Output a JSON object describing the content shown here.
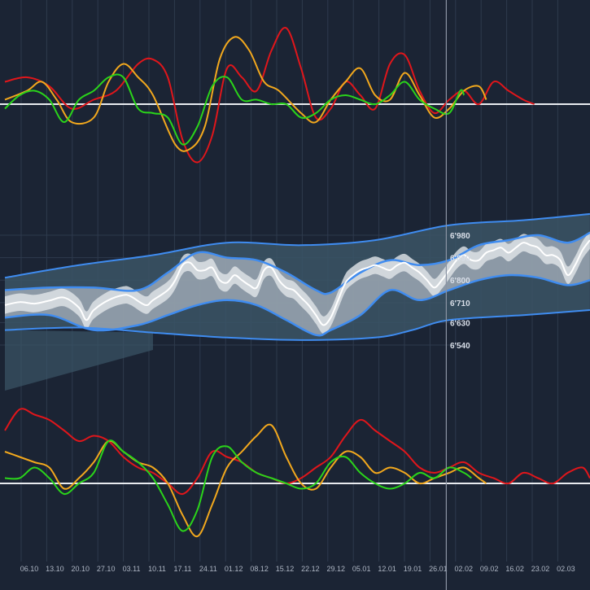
{
  "chart_data": {
    "type": "line",
    "colors": {
      "background": "#1b2434",
      "grid": "#2e3a4d",
      "red": "#e0161b",
      "orange": "#f2a81d",
      "green": "#2ad41a",
      "white": "#ffffff",
      "band_blue": "#3f8cf0",
      "outer_fill": "#3b5566",
      "inner_fill": "#a3acb8",
      "core_fill": "#e2e6ea"
    },
    "x_axis": {
      "tick_labels": [
        "06.10",
        "13.10",
        "20.10",
        "27.10",
        "03.11",
        "10.11",
        "17.11",
        "24.11",
        "01.12",
        "08.12",
        "15.12",
        "22.12",
        "29.12",
        "05.01",
        "12.01",
        "19.01",
        "26.01",
        "02.02",
        "09.02",
        "16.02",
        "23.02",
        "02.03"
      ],
      "current_date": "26.01"
    },
    "y_axis": {
      "tick_labels": [
        "6'980",
        "6'890",
        "6'800",
        "6'710",
        "6'630",
        "6'540"
      ],
      "tick_values": [
        6980,
        6890,
        6800,
        6710,
        6630,
        6540
      ]
    },
    "price_panel": {
      "price": [
        [
          0,
          6700
        ],
        [
          2,
          6712
        ],
        [
          4,
          6706
        ],
        [
          6,
          6718
        ],
        [
          8,
          6730
        ],
        [
          10,
          6690
        ],
        [
          11,
          6640
        ],
        [
          12,
          6680
        ],
        [
          14,
          6720
        ],
        [
          16,
          6740
        ],
        [
          17,
          6735
        ],
        [
          19,
          6700
        ],
        [
          20,
          6720
        ],
        [
          22,
          6760
        ],
        [
          23,
          6800
        ],
        [
          24,
          6860
        ],
        [
          25,
          6870
        ],
        [
          26,
          6840
        ],
        [
          27,
          6840
        ],
        [
          28,
          6850
        ],
        [
          29,
          6800
        ],
        [
          30,
          6790
        ],
        [
          31,
          6820
        ],
        [
          32,
          6800
        ],
        [
          33,
          6780
        ],
        [
          34,
          6770
        ],
        [
          35,
          6840
        ],
        [
          36,
          6850
        ],
        [
          37,
          6800
        ],
        [
          38,
          6770
        ],
        [
          39,
          6760
        ],
        [
          40,
          6730
        ],
        [
          41,
          6700
        ],
        [
          42,
          6660
        ],
        [
          43,
          6620
        ],
        [
          44,
          6650
        ],
        [
          45,
          6720
        ],
        [
          46,
          6790
        ],
        [
          47,
          6820
        ],
        [
          48,
          6840
        ],
        [
          49,
          6850
        ],
        [
          50,
          6860
        ],
        [
          51,
          6850
        ],
        [
          52,
          6840
        ],
        [
          53,
          6860
        ],
        [
          54,
          6870
        ],
        [
          55,
          6850
        ],
        [
          56,
          6830
        ],
        [
          57,
          6800
        ],
        [
          58,
          6770
        ],
        [
          59,
          6800
        ],
        [
          60,
          6840
        ],
        [
          61,
          6880
        ],
        [
          62,
          6900
        ],
        [
          63,
          6880
        ],
        [
          64,
          6880
        ],
        [
          65,
          6910
        ],
        [
          66,
          6920
        ],
        [
          67,
          6930
        ],
        [
          68,
          6910
        ],
        [
          69,
          6930
        ],
        [
          70,
          6950
        ],
        [
          71,
          6940
        ],
        [
          72,
          6930
        ],
        [
          73,
          6900
        ],
        [
          74,
          6900
        ],
        [
          75,
          6880
        ],
        [
          76,
          6820
        ],
        [
          77,
          6860
        ],
        [
          78,
          6920
        ],
        [
          79,
          6960
        ]
      ],
      "inner_upper": [
        [
          0,
          6760
        ],
        [
          6,
          6770
        ],
        [
          12,
          6770
        ],
        [
          18,
          6760
        ],
        [
          22,
          6830
        ],
        [
          26,
          6910
        ],
        [
          30,
          6890
        ],
        [
          34,
          6880
        ],
        [
          38,
          6830
        ],
        [
          42,
          6760
        ],
        [
          44,
          6750
        ],
        [
          48,
          6830
        ],
        [
          52,
          6880
        ],
        [
          56,
          6860
        ],
        [
          60,
          6880
        ],
        [
          64,
          6940
        ],
        [
          68,
          6960
        ],
        [
          72,
          6980
        ],
        [
          76,
          6950
        ],
        [
          79,
          6990
        ]
      ],
      "inner_lower": [
        [
          0,
          6650
        ],
        [
          6,
          6660
        ],
        [
          12,
          6600
        ],
        [
          18,
          6620
        ],
        [
          22,
          6660
        ],
        [
          26,
          6700
        ],
        [
          30,
          6720
        ],
        [
          34,
          6700
        ],
        [
          38,
          6640
        ],
        [
          42,
          6580
        ],
        [
          44,
          6600
        ],
        [
          48,
          6660
        ],
        [
          52,
          6760
        ],
        [
          56,
          6720
        ],
        [
          60,
          6760
        ],
        [
          64,
          6800
        ],
        [
          68,
          6820
        ],
        [
          72,
          6810
        ],
        [
          76,
          6780
        ],
        [
          79,
          6800
        ]
      ],
      "outer_upper": [
        [
          0,
          6810
        ],
        [
          10,
          6860
        ],
        [
          20,
          6900
        ],
        [
          30,
          6950
        ],
        [
          40,
          6940
        ],
        [
          50,
          6960
        ],
        [
          60,
          7020
        ],
        [
          70,
          7040
        ],
        [
          79,
          7065
        ]
      ],
      "outer_lower": [
        [
          0,
          6600
        ],
        [
          10,
          6610
        ],
        [
          20,
          6590
        ],
        [
          30,
          6570
        ],
        [
          40,
          6560
        ],
        [
          50,
          6570
        ],
        [
          55,
          6600
        ],
        [
          60,
          6640
        ],
        [
          70,
          6660
        ],
        [
          79,
          6680
        ]
      ]
    },
    "top_panel": {
      "red": [
        [
          0,
          0.5
        ],
        [
          3,
          0.6
        ],
        [
          6,
          0.4
        ],
        [
          9,
          -0.1
        ],
        [
          12,
          0.1
        ],
        [
          15,
          0.3
        ],
        [
          18,
          0.9
        ],
        [
          20,
          1.0
        ],
        [
          22,
          0.6
        ],
        [
          24,
          -0.8
        ],
        [
          26,
          -1.3
        ],
        [
          28,
          -0.7
        ],
        [
          30,
          0.8
        ],
        [
          32,
          0.6
        ],
        [
          34,
          0.3
        ],
        [
          36,
          1.2
        ],
        [
          38,
          1.7
        ],
        [
          40,
          0.8
        ],
        [
          42,
          -0.3
        ],
        [
          44,
          -0.1
        ],
        [
          46,
          0.5
        ],
        [
          48,
          0.2
        ],
        [
          50,
          -0.1
        ],
        [
          52,
          0.9
        ],
        [
          54,
          1.1
        ],
        [
          56,
          0.3
        ],
        [
          58,
          -0.2
        ],
        [
          60,
          0.1
        ],
        [
          62,
          0.3
        ],
        [
          64,
          0.0
        ],
        [
          66,
          0.5
        ],
        [
          68,
          0.3
        ],
        [
          70,
          0.1
        ],
        [
          71.5,
          0.0
        ]
      ],
      "orange": [
        [
          0,
          0.1
        ],
        [
          3,
          0.3
        ],
        [
          5,
          0.5
        ],
        [
          7,
          0.1
        ],
        [
          9,
          -0.4
        ],
        [
          12,
          -0.3
        ],
        [
          14,
          0.5
        ],
        [
          16,
          0.9
        ],
        [
          18,
          0.6
        ],
        [
          20,
          0.2
        ],
        [
          23,
          -0.9
        ],
        [
          25,
          -1.0
        ],
        [
          27,
          -0.5
        ],
        [
          29,
          1.0
        ],
        [
          31,
          1.5
        ],
        [
          33,
          1.2
        ],
        [
          35,
          0.5
        ],
        [
          37,
          0.3
        ],
        [
          40,
          -0.2
        ],
        [
          42,
          -0.4
        ],
        [
          44,
          0.1
        ],
        [
          46,
          0.5
        ],
        [
          48,
          0.8
        ],
        [
          50,
          0.2
        ],
        [
          52,
          0.1
        ],
        [
          54,
          0.7
        ],
        [
          56,
          0.2
        ],
        [
          58,
          -0.3
        ],
        [
          60,
          -0.1
        ],
        [
          62,
          0.3
        ],
        [
          64,
          0.4
        ],
        [
          65,
          0.1
        ]
      ],
      "green": [
        [
          0,
          -0.1
        ],
        [
          2,
          0.2
        ],
        [
          4,
          0.3
        ],
        [
          6,
          0.1
        ],
        [
          8,
          -0.4
        ],
        [
          10,
          0.1
        ],
        [
          12,
          0.3
        ],
        [
          14,
          0.6
        ],
        [
          16,
          0.6
        ],
        [
          18,
          -0.1
        ],
        [
          20,
          -0.2
        ],
        [
          22,
          -0.3
        ],
        [
          24,
          -0.9
        ],
        [
          26,
          -0.5
        ],
        [
          28,
          0.4
        ],
        [
          30,
          0.6
        ],
        [
          32,
          0.1
        ],
        [
          34,
          0.1
        ],
        [
          36,
          0.0
        ],
        [
          38,
          0.0
        ],
        [
          40,
          -0.3
        ],
        [
          42,
          -0.2
        ],
        [
          44,
          0.1
        ],
        [
          46,
          0.2
        ],
        [
          48,
          0.1
        ],
        [
          50,
          0.0
        ],
        [
          52,
          0.2
        ],
        [
          54,
          0.5
        ],
        [
          56,
          0.1
        ],
        [
          58,
          -0.1
        ],
        [
          60,
          -0.2
        ],
        [
          61.5,
          0.3
        ],
        [
          62,
          0.2
        ]
      ]
    },
    "bottom_panel": {
      "red": [
        [
          0,
          1.0
        ],
        [
          2,
          1.4
        ],
        [
          4,
          1.3
        ],
        [
          6,
          1.2
        ],
        [
          8,
          1.0
        ],
        [
          10,
          0.8
        ],
        [
          12,
          0.9
        ],
        [
          14,
          0.8
        ],
        [
          16,
          0.5
        ],
        [
          18,
          0.3
        ],
        [
          20,
          0.2
        ],
        [
          22,
          0.0
        ],
        [
          24,
          -0.2
        ],
        [
          26,
          0.1
        ],
        [
          28,
          0.6
        ],
        [
          30,
          0.5
        ],
        [
          32,
          0.4
        ],
        [
          34,
          0.2
        ],
        [
          36,
          0.1
        ],
        [
          38,
          0.0
        ],
        [
          40,
          0.1
        ],
        [
          42,
          0.3
        ],
        [
          44,
          0.5
        ],
        [
          46,
          0.9
        ],
        [
          48,
          1.2
        ],
        [
          50,
          1.0
        ],
        [
          52,
          0.8
        ],
        [
          54,
          0.6
        ],
        [
          56,
          0.3
        ],
        [
          58,
          0.2
        ],
        [
          60,
          0.3
        ],
        [
          62,
          0.4
        ],
        [
          64,
          0.2
        ],
        [
          66,
          0.1
        ],
        [
          68,
          0.0
        ],
        [
          70,
          0.2
        ],
        [
          72,
          0.1
        ],
        [
          74,
          0.0
        ],
        [
          76,
          0.2
        ],
        [
          78,
          0.3
        ],
        [
          79,
          0.1
        ]
      ],
      "orange": [
        [
          0,
          0.6
        ],
        [
          2,
          0.5
        ],
        [
          4,
          0.4
        ],
        [
          6,
          0.3
        ],
        [
          8,
          -0.1
        ],
        [
          10,
          0.1
        ],
        [
          12,
          0.4
        ],
        [
          14,
          0.8
        ],
        [
          16,
          0.6
        ],
        [
          18,
          0.4
        ],
        [
          20,
          0.3
        ],
        [
          22,
          0.0
        ],
        [
          24,
          -0.6
        ],
        [
          26,
          -1.0
        ],
        [
          28,
          -0.4
        ],
        [
          30,
          0.3
        ],
        [
          32,
          0.6
        ],
        [
          34,
          0.9
        ],
        [
          36,
          1.1
        ],
        [
          38,
          0.5
        ],
        [
          40,
          0.0
        ],
        [
          42,
          -0.1
        ],
        [
          44,
          0.3
        ],
        [
          46,
          0.6
        ],
        [
          48,
          0.5
        ],
        [
          50,
          0.2
        ],
        [
          52,
          0.3
        ],
        [
          54,
          0.2
        ],
        [
          56,
          0.0
        ],
        [
          58,
          0.1
        ],
        [
          60,
          0.2
        ],
        [
          62,
          0.3
        ],
        [
          64,
          0.1
        ],
        [
          65,
          0.0
        ]
      ],
      "green": [
        [
          0,
          0.1
        ],
        [
          2,
          0.1
        ],
        [
          4,
          0.3
        ],
        [
          6,
          0.1
        ],
        [
          8,
          -0.2
        ],
        [
          10,
          0.0
        ],
        [
          12,
          0.2
        ],
        [
          14,
          0.8
        ],
        [
          16,
          0.6
        ],
        [
          18,
          0.4
        ],
        [
          20,
          0.1
        ],
        [
          22,
          -0.4
        ],
        [
          24,
          -0.9
        ],
        [
          26,
          -0.5
        ],
        [
          28,
          0.5
        ],
        [
          30,
          0.7
        ],
        [
          32,
          0.4
        ],
        [
          34,
          0.2
        ],
        [
          36,
          0.1
        ],
        [
          38,
          0.0
        ],
        [
          40,
          -0.1
        ],
        [
          42,
          0.0
        ],
        [
          44,
          0.4
        ],
        [
          46,
          0.5
        ],
        [
          48,
          0.2
        ],
        [
          50,
          0.0
        ],
        [
          52,
          -0.1
        ],
        [
          54,
          0.0
        ],
        [
          56,
          0.2
        ],
        [
          58,
          0.1
        ],
        [
          60,
          0.3
        ],
        [
          62,
          0.2
        ],
        [
          63,
          0.1
        ]
      ]
    }
  }
}
